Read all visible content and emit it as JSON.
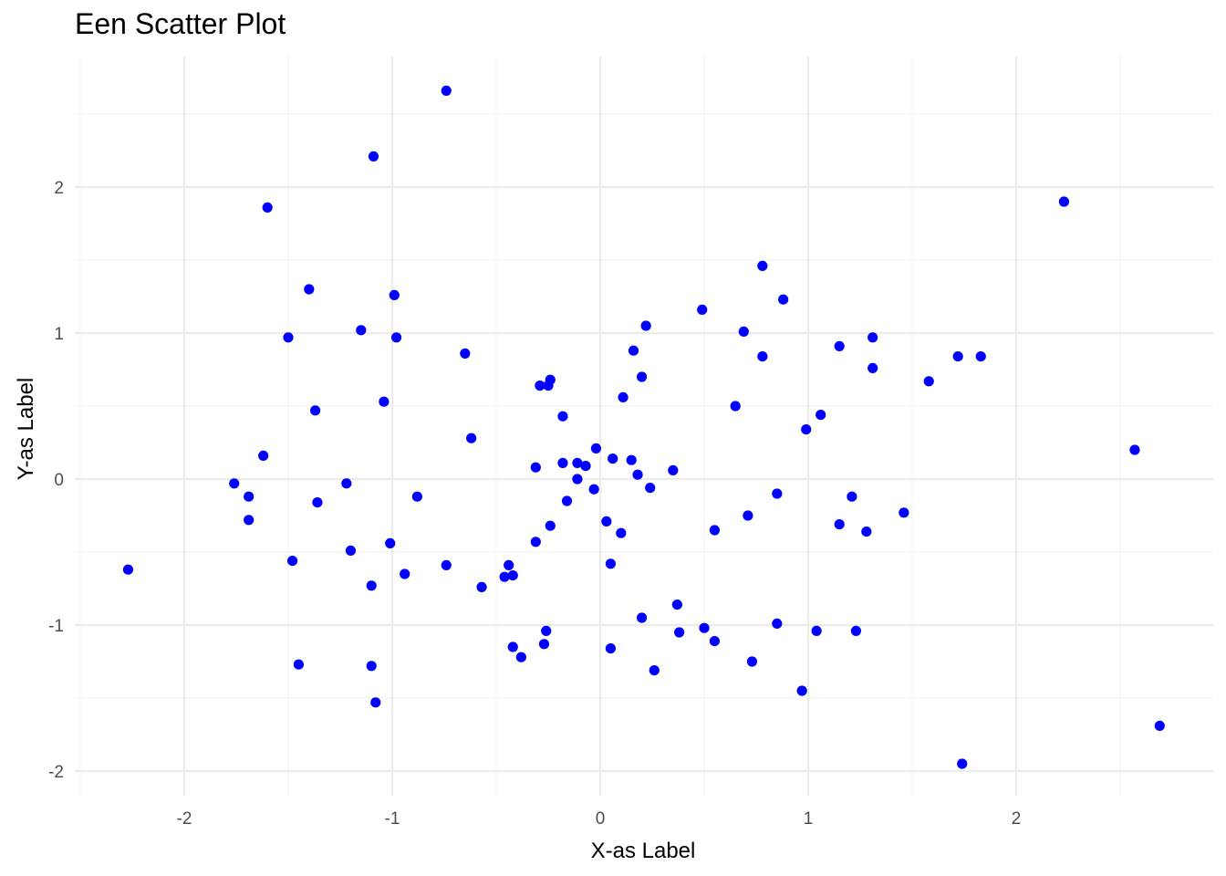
{
  "chart_data": {
    "type": "scatter",
    "title": "Een Scatter Plot",
    "xlabel": "X-as Label",
    "ylabel": "Y-as Label",
    "xlim": [
      -2.5,
      2.9
    ],
    "ylim": [
      -2.2,
      2.9
    ],
    "grid": true,
    "colors": {
      "point": "#0000ff",
      "grid_major": "#ebebeb",
      "grid_minor": "#f3f3f3",
      "tick_text": "#4d4d4d"
    },
    "x_ticks": [
      {
        "value": -2,
        "label": "-2"
      },
      {
        "value": -1,
        "label": "-1"
      },
      {
        "value": 0,
        "label": "0"
      },
      {
        "value": 1,
        "label": "1"
      },
      {
        "value": 2,
        "label": "2"
      }
    ],
    "y_ticks": [
      {
        "value": -2,
        "label": "-2"
      },
      {
        "value": -1,
        "label": "-1"
      },
      {
        "value": 0,
        "label": "0"
      },
      {
        "value": 1,
        "label": "1"
      },
      {
        "value": 2,
        "label": "2"
      }
    ],
    "points": [
      [
        -2.27,
        -0.62
      ],
      [
        -1.76,
        -0.03
      ],
      [
        -1.69,
        -0.12
      ],
      [
        -1.69,
        -0.28
      ],
      [
        -1.62,
        0.16
      ],
      [
        -1.6,
        1.86
      ],
      [
        -1.5,
        0.97
      ],
      [
        -1.48,
        -0.56
      ],
      [
        -1.45,
        -1.27
      ],
      [
        -1.4,
        1.3
      ],
      [
        -1.37,
        0.47
      ],
      [
        -1.36,
        -0.16
      ],
      [
        -1.22,
        -0.03
      ],
      [
        -1.2,
        -0.49
      ],
      [
        -1.15,
        1.02
      ],
      [
        -1.1,
        -0.73
      ],
      [
        -1.1,
        -1.28
      ],
      [
        -1.09,
        2.21
      ],
      [
        -1.08,
        -1.53
      ],
      [
        -1.04,
        0.53
      ],
      [
        -1.01,
        -0.44
      ],
      [
        -0.99,
        1.26
      ],
      [
        -0.98,
        0.97
      ],
      [
        -0.94,
        -0.65
      ],
      [
        -0.88,
        -0.12
      ],
      [
        -0.74,
        2.66
      ],
      [
        -0.74,
        -0.59
      ],
      [
        -0.65,
        0.86
      ],
      [
        -0.62,
        0.28
      ],
      [
        -0.57,
        -0.74
      ],
      [
        -0.46,
        -0.67
      ],
      [
        -0.44,
        -0.59
      ],
      [
        -0.42,
        -0.66
      ],
      [
        -0.42,
        -1.15
      ],
      [
        -0.38,
        -1.22
      ],
      [
        -0.31,
        0.08
      ],
      [
        -0.31,
        -0.43
      ],
      [
        -0.29,
        0.64
      ],
      [
        -0.27,
        -1.13
      ],
      [
        -0.26,
        -1.04
      ],
      [
        -0.25,
        0.64
      ],
      [
        -0.24,
        0.68
      ],
      [
        -0.24,
        -0.32
      ],
      [
        -0.18,
        0.11
      ],
      [
        -0.18,
        0.43
      ],
      [
        -0.16,
        -0.15
      ],
      [
        -0.11,
        0.11
      ],
      [
        -0.11,
        0.0
      ],
      [
        -0.07,
        0.09
      ],
      [
        -0.03,
        -0.07
      ],
      [
        -0.02,
        0.21
      ],
      [
        0.03,
        -0.29
      ],
      [
        0.05,
        -0.58
      ],
      [
        0.05,
        -1.16
      ],
      [
        0.06,
        0.14
      ],
      [
        0.1,
        -0.37
      ],
      [
        0.11,
        0.56
      ],
      [
        0.15,
        0.13
      ],
      [
        0.16,
        0.88
      ],
      [
        0.18,
        0.03
      ],
      [
        0.2,
        0.7
      ],
      [
        0.2,
        -0.95
      ],
      [
        0.22,
        1.05
      ],
      [
        0.24,
        -0.06
      ],
      [
        0.26,
        -1.31
      ],
      [
        0.35,
        0.06
      ],
      [
        0.37,
        -0.86
      ],
      [
        0.38,
        -1.05
      ],
      [
        0.49,
        1.16
      ],
      [
        0.5,
        -1.02
      ],
      [
        0.55,
        -0.35
      ],
      [
        0.55,
        -1.11
      ],
      [
        0.65,
        0.5
      ],
      [
        0.69,
        1.01
      ],
      [
        0.71,
        -0.25
      ],
      [
        0.73,
        -1.25
      ],
      [
        0.78,
        1.46
      ],
      [
        0.78,
        0.84
      ],
      [
        0.85,
        -0.1
      ],
      [
        0.85,
        -0.99
      ],
      [
        0.88,
        1.23
      ],
      [
        0.97,
        -1.45
      ],
      [
        0.99,
        0.34
      ],
      [
        1.04,
        -1.04
      ],
      [
        1.06,
        0.44
      ],
      [
        1.15,
        0.91
      ],
      [
        1.15,
        -0.31
      ],
      [
        1.21,
        -0.12
      ],
      [
        1.23,
        -1.04
      ],
      [
        1.28,
        -0.36
      ],
      [
        1.31,
        0.76
      ],
      [
        1.31,
        0.97
      ],
      [
        1.46,
        -0.23
      ],
      [
        1.58,
        0.67
      ],
      [
        1.72,
        0.84
      ],
      [
        1.74,
        -1.95
      ],
      [
        1.83,
        0.84
      ],
      [
        2.23,
        1.9
      ],
      [
        2.57,
        0.2
      ],
      [
        2.69,
        -1.69
      ]
    ]
  }
}
